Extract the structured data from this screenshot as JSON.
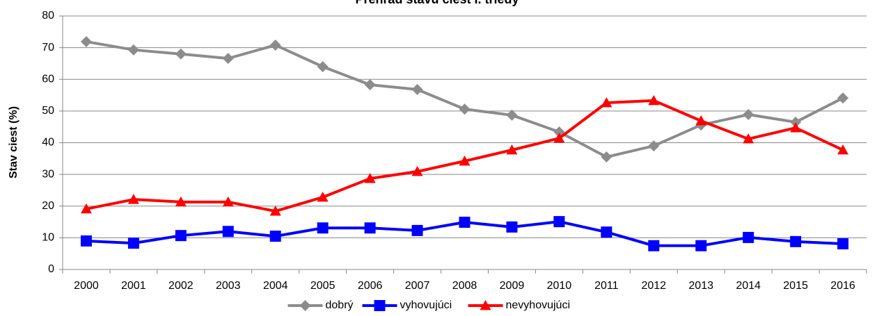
{
  "chart_data": {
    "type": "line",
    "title": "Prehľad stavu ciest I. triedy",
    "y_label": "Stav ciest (%)",
    "categories": [
      "2000",
      "2001",
      "2002",
      "2003",
      "2004",
      "2005",
      "2006",
      "2007",
      "2008",
      "2009",
      "2010",
      "2011",
      "2012",
      "2013",
      "2014",
      "2015",
      "2016"
    ],
    "series": [
      {
        "name": "dobrý",
        "color": "#8c8c8c",
        "marker": "diamond",
        "values": [
          71.9,
          69.3,
          68,
          66.6,
          70.8,
          64,
          58.3,
          56.8,
          50.6,
          48.7,
          43.4,
          35.5,
          39,
          45.6,
          48.9,
          46.5,
          54.1
        ]
      },
      {
        "name": "vyhovujúci",
        "color": "#0000ff",
        "marker": "square",
        "values": [
          9,
          8.3,
          10.7,
          12,
          10.5,
          13.1,
          13.1,
          12.3,
          14.9,
          13.4,
          15.1,
          11.8,
          7.5,
          7.5,
          10.1,
          8.8,
          8.1
        ]
      },
      {
        "name": "nevyhovujúci",
        "color": "#ff0000",
        "marker": "triangle",
        "values": [
          19.1,
          22.1,
          21.3,
          21.3,
          18.4,
          22.8,
          28.7,
          30.9,
          34.2,
          37.7,
          41.4,
          52.6,
          53.3,
          46.9,
          41.2,
          44.7,
          37.7
        ]
      }
    ],
    "ylim": [
      0,
      80
    ],
    "yticks": [
      0,
      10,
      20,
      30,
      40,
      50,
      60,
      70,
      80
    ],
    "grid": true,
    "legend": "bottom"
  }
}
